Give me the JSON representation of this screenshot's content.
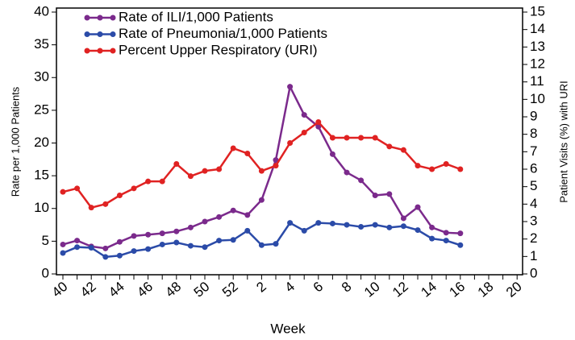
{
  "chart_data": {
    "type": "line",
    "x_label": "Week",
    "y_label": "Rate per 1,000 Patients",
    "y2_label": "Patient Visits (%) with URI",
    "categories": [
      "40",
      null,
      "42",
      null,
      "44",
      null,
      "46",
      null,
      "48",
      null,
      "50",
      null,
      "52",
      null,
      "2",
      null,
      "4",
      null,
      "6",
      null,
      "8",
      null,
      "10",
      null,
      "12",
      null,
      "14",
      null,
      "16",
      null,
      "18",
      null,
      "20"
    ],
    "series": [
      {
        "name": "Rate of ILI/1,000 Patients",
        "color": "#7b2a8c",
        "values": [
          4.5,
          5.1,
          4.2,
          3.9,
          4.9,
          5.8,
          6.0,
          6.2,
          6.5,
          7.1,
          8.0,
          8.7,
          9.7,
          9.0,
          11.3,
          17.4,
          28.6,
          24.3,
          22.5,
          18.3,
          15.5,
          14.3,
          12.0,
          12.2,
          8.5,
          10.2,
          7.1,
          6.3,
          6.2,
          null,
          null,
          null,
          null
        ]
      },
      {
        "name": "Rate of Pneumonia/1,000 Patients",
        "color": "#2b4ba8",
        "values": [
          3.2,
          4.1,
          4.0,
          2.6,
          2.8,
          3.5,
          3.8,
          4.5,
          4.8,
          4.3,
          4.1,
          5.1,
          5.2,
          6.6,
          4.4,
          4.6,
          7.8,
          6.6,
          7.8,
          7.7,
          7.5,
          7.2,
          7.5,
          7.1,
          7.3,
          6.7,
          5.4,
          5.1,
          4.4,
          null,
          null,
          null,
          null
        ]
      },
      {
        "name": "Percent Upper Respiratory (URI)",
        "color": "#e02222",
        "axis": "y2",
        "values": [
          4.7,
          4.9,
          3.8,
          4.0,
          4.5,
          4.9,
          5.3,
          5.3,
          6.3,
          5.6,
          5.9,
          6.0,
          7.2,
          6.9,
          5.9,
          6.2,
          7.5,
          8.1,
          8.7,
          7.8,
          7.8,
          7.8,
          7.8,
          7.3,
          7.1,
          6.2,
          6.0,
          6.3,
          6.0,
          null,
          null,
          null,
          null
        ]
      }
    ],
    "ylim": [
      0,
      40
    ],
    "yticks": [
      0,
      5,
      10,
      15,
      20,
      25,
      30,
      35,
      40
    ],
    "y2lim": [
      0,
      15
    ],
    "y2ticks": [
      0,
      1,
      2,
      3,
      4,
      5,
      6,
      7,
      8,
      9,
      10,
      11,
      12,
      13,
      14,
      15
    ],
    "legend": "upper left"
  }
}
